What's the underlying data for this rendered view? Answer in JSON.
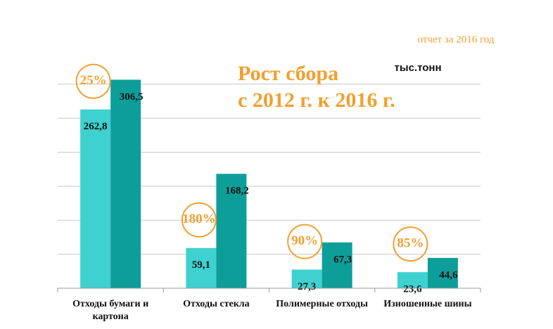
{
  "chart_data": {
    "type": "bar",
    "report_note": "отчет за 2016 год",
    "unit_label": "тыс.тонн",
    "title_lines": [
      "Рост сбора",
      "с 2012 г.  к 2016 г."
    ],
    "categories": [
      "Отходы бумаги и картона",
      "Отходы стекла",
      "Полимерные отходы",
      "Изношенные шины"
    ],
    "series": [
      {
        "color": "#3fd0d0",
        "values": [
          262.8,
          59.1,
          27.3,
          23.6
        ],
        "value_labels": [
          "262,8",
          "59,1",
          "27,3",
          "23,6"
        ]
      },
      {
        "color": "#0e9e9a",
        "values": [
          306.5,
          168.2,
          67.3,
          44.6
        ],
        "value_labels": [
          "306,5",
          "168,2",
          "67,3",
          "44,6"
        ]
      }
    ],
    "growth_labels": [
      "25%",
      "180%",
      "90%",
      "85%"
    ],
    "growth_color": "#f0a030",
    "ylim": [
      0,
      310
    ],
    "yticks": [
      0,
      50,
      100,
      150,
      200,
      250,
      300
    ],
    "grid": true
  }
}
